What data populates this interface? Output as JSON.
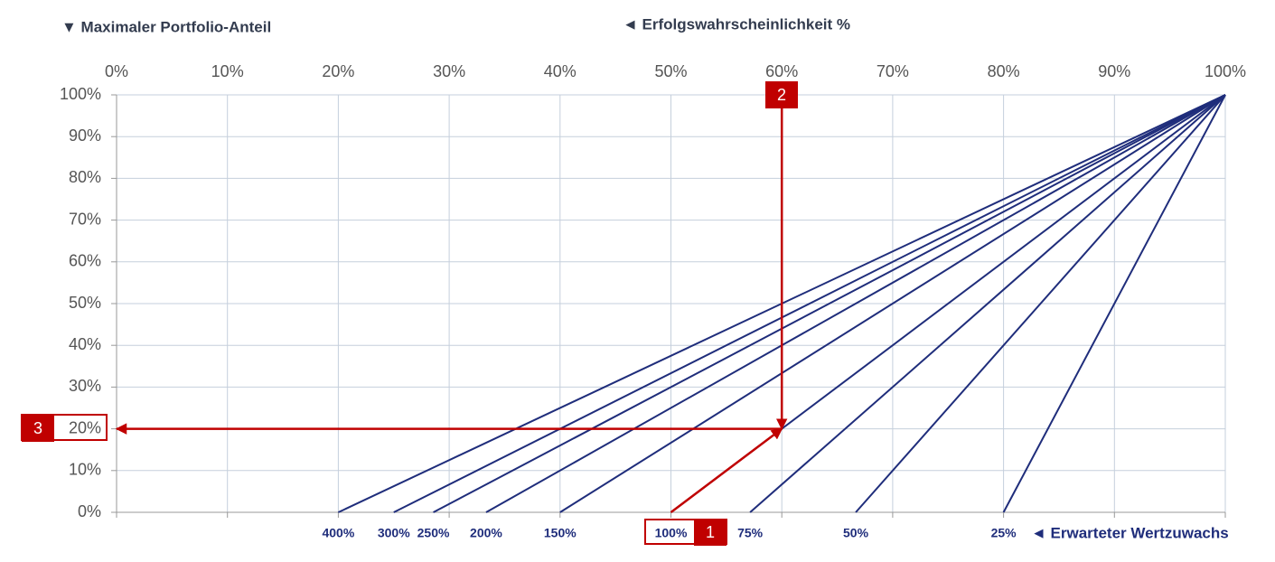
{
  "chart_data": {
    "type": "line",
    "title": "◄ Erfolgswahrscheinlichkeit %",
    "y_axis_label": "▼ Maximaler Portfolio-Anteil",
    "series_axis_label": "◄ Erwarteter Wertzuwachs",
    "color": "#1f2d7b",
    "grid": true,
    "xlim": [
      0,
      100
    ],
    "ylim": [
      0,
      100
    ],
    "xticks": [
      {
        "value": 0,
        "label": "0%"
      },
      {
        "value": 10,
        "label": "10%"
      },
      {
        "value": 20,
        "label": "20%"
      },
      {
        "value": 30,
        "label": "30%"
      },
      {
        "value": 40,
        "label": "40%"
      },
      {
        "value": 50,
        "label": "50%"
      },
      {
        "value": 60,
        "label": "60%"
      },
      {
        "value": 70,
        "label": "70%"
      },
      {
        "value": 80,
        "label": "80%"
      },
      {
        "value": 90,
        "label": "90%"
      },
      {
        "value": 100,
        "label": "100%"
      }
    ],
    "yticks": [
      {
        "value": 0,
        "label": "0%"
      },
      {
        "value": 10,
        "label": "10%"
      },
      {
        "value": 20,
        "label": "20%"
      },
      {
        "value": 30,
        "label": "30%"
      },
      {
        "value": 40,
        "label": "40%"
      },
      {
        "value": 50,
        "label": "50%"
      },
      {
        "value": 60,
        "label": "60%"
      },
      {
        "value": 70,
        "label": "70%"
      },
      {
        "value": 80,
        "label": "80%"
      },
      {
        "value": 90,
        "label": "90%"
      },
      {
        "value": 100,
        "label": "100%"
      }
    ],
    "series": [
      {
        "name": "400%",
        "x": [
          20,
          100
        ],
        "values": [
          0,
          100
        ]
      },
      {
        "name": "300%",
        "x": [
          25,
          100
        ],
        "values": [
          0,
          100
        ]
      },
      {
        "name": "250%",
        "x": [
          28.57,
          100
        ],
        "values": [
          0,
          100
        ]
      },
      {
        "name": "200%",
        "x": [
          33.33,
          100
        ],
        "values": [
          0,
          100
        ]
      },
      {
        "name": "150%",
        "x": [
          40,
          100
        ],
        "values": [
          0,
          100
        ]
      },
      {
        "name": "100%",
        "x": [
          50,
          100
        ],
        "values": [
          0,
          100
        ]
      },
      {
        "name": "75%",
        "x": [
          57.14,
          100
        ],
        "values": [
          0,
          100
        ]
      },
      {
        "name": "50%",
        "x": [
          66.67,
          100
        ],
        "values": [
          0,
          100
        ]
      },
      {
        "name": "25%",
        "x": [
          80,
          100
        ],
        "values": [
          0,
          100
        ]
      }
    ],
    "annotation_color": "#c00000",
    "annotations": [
      {
        "label": "1",
        "x": [
          50,
          60
        ],
        "y": [
          0,
          20
        ]
      },
      {
        "label": "2",
        "x": [
          60,
          60
        ],
        "y": [
          100,
          20
        ]
      },
      {
        "label": "3",
        "x": [
          60,
          0
        ],
        "y": [
          20,
          20
        ]
      }
    ]
  }
}
